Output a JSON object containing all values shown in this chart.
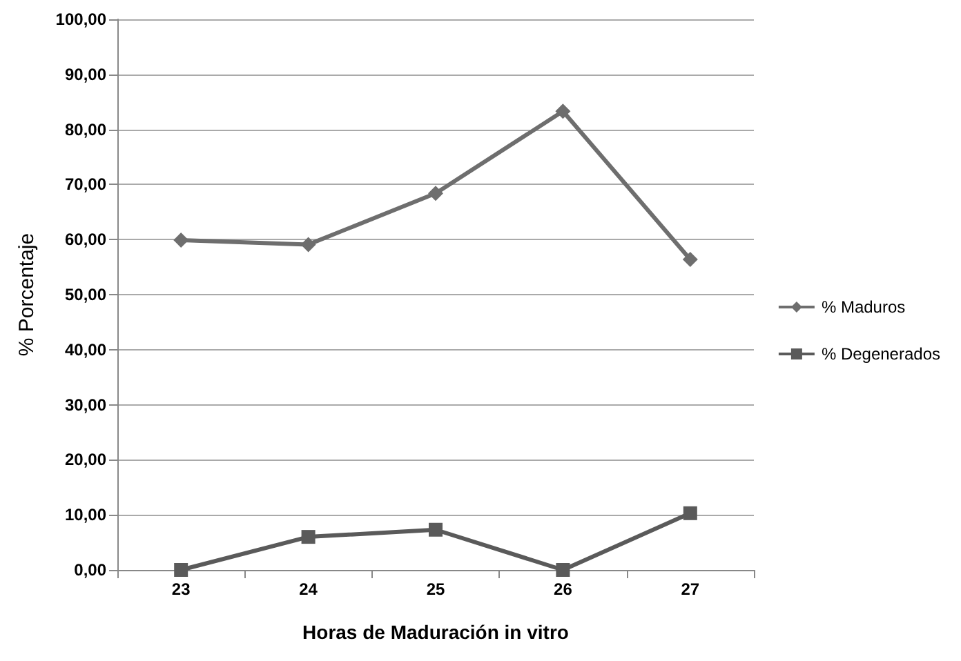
{
  "chart_data": {
    "type": "line",
    "xlabel": "Horas de Maduración in vitro",
    "ylabel": "% Porcentaje",
    "categories": [
      "23",
      "24",
      "25",
      "26",
      "27"
    ],
    "series": [
      {
        "name": "% Maduros",
        "color": "#6e6e6e",
        "marker": "diamond",
        "values": [
          59.9,
          59.1,
          68.4,
          83.3,
          56.4
        ]
      },
      {
        "name": "% Degenerados",
        "color": "#5a5a5a",
        "marker": "square",
        "values": [
          0,
          6.0,
          7.3,
          0,
          10.3
        ]
      }
    ],
    "ylim": [
      0,
      100
    ],
    "yticks": [
      {
        "value": 0,
        "label": "0,00"
      },
      {
        "value": 10,
        "label": "10,00"
      },
      {
        "value": 20,
        "label": "20,00"
      },
      {
        "value": 30,
        "label": "30,00"
      },
      {
        "value": 40,
        "label": "40,00"
      },
      {
        "value": 50,
        "label": "50,00"
      },
      {
        "value": 60,
        "label": "60,00"
      },
      {
        "value": 70,
        "label": "70,00"
      },
      {
        "value": 80,
        "label": "80,00"
      },
      {
        "value": 90,
        "label": "90,00"
      },
      {
        "value": 100,
        "label": "100,00"
      }
    ],
    "grid": "y",
    "legend": "right",
    "line_style": "solid"
  }
}
